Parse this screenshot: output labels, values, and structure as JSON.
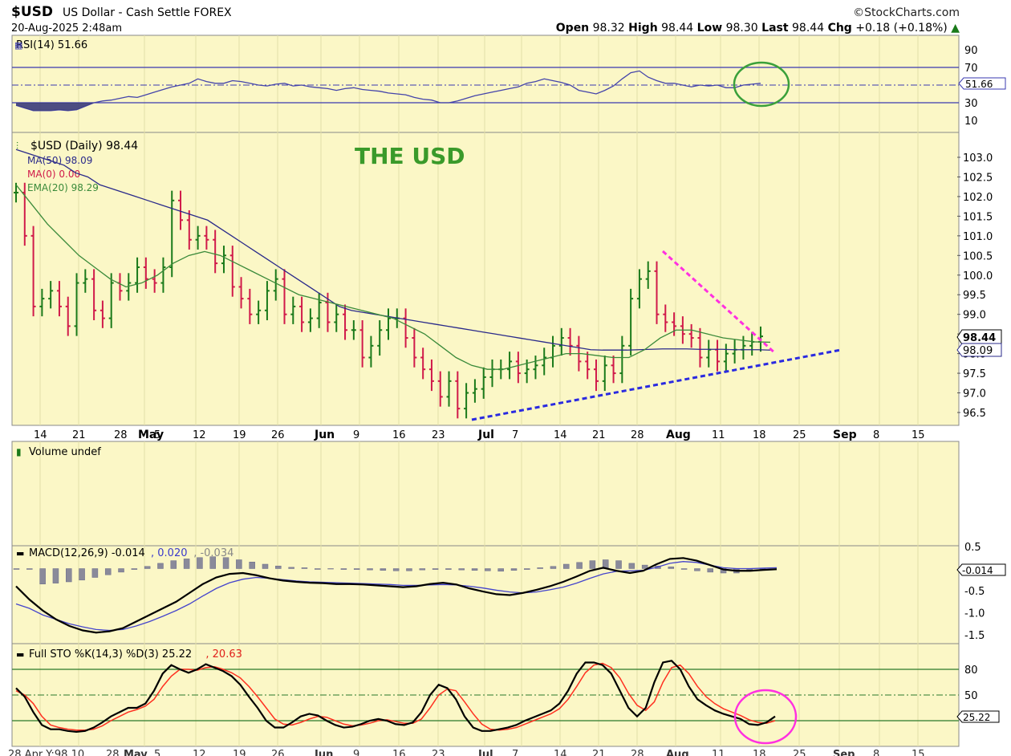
{
  "header": {
    "symbol": "$USD",
    "description": "US Dollar - Cash Settle FOREX",
    "datetime": "20-Aug-2025 2:48am",
    "source": "©StockCharts.com",
    "open_label": "Open",
    "open": "98.32",
    "high_label": "High",
    "high": "98.44",
    "low_label": "Low",
    "low": "98.30",
    "last_label": "Last",
    "last": "98.44",
    "chg_label": "Chg",
    "chg": "+0.18 (+0.18%)"
  },
  "annotation_title": "THE USD",
  "colors": {
    "panel_bg": "#fbf7c6",
    "up": "#1a7a1a",
    "down": "#d01a4a",
    "ma50": "#2a2a8a",
    "ema20": "#3a8a3a",
    "trend_blue": "#2a2ae0",
    "trend_pink": "#ff30e0",
    "circle_green": "#3aa03a",
    "circle_pink": "#ff30e0"
  },
  "chart_data": [
    {
      "type": "line",
      "panel": "rsi",
      "legend": "RSI(14) 51.66",
      "last_value": "51.66",
      "y_ticks": [
        "90",
        "70",
        "50",
        "30",
        "10"
      ],
      "series": [
        {
          "name": "RSI(14)",
          "values": [
            27,
            24,
            21,
            21,
            21,
            22,
            21,
            22,
            26,
            30,
            32,
            33,
            35,
            37,
            36,
            39,
            42,
            45,
            48,
            50,
            52,
            57,
            54,
            52,
            52,
            55,
            54,
            52,
            50,
            49,
            51,
            52,
            49,
            50,
            48,
            47,
            46,
            44,
            46,
            47,
            45,
            44,
            43,
            41,
            40,
            39,
            36,
            34,
            33,
            30,
            30,
            32,
            35,
            38,
            40,
            42,
            44,
            46,
            48,
            52,
            54,
            57,
            55,
            53,
            50,
            44,
            42,
            40,
            44,
            49,
            57,
            64,
            66,
            59,
            55,
            52,
            52,
            50,
            48,
            50,
            49,
            50,
            47,
            47,
            50,
            51,
            52
          ]
        }
      ]
    },
    {
      "type": "bar",
      "panel": "price",
      "legend": [
        "$USD (Daily) 98.44",
        "MA(50) 98.09",
        "MA(0) 0.00",
        "EMA(20) 98.29"
      ],
      "last_value": "98.44",
      "ma50_last": "98.09",
      "y_ticks": [
        "103.0",
        "102.5",
        "102.0",
        "101.5",
        "101.0",
        "100.5",
        "100.0",
        "99.5",
        "99.0",
        "98.5",
        "98.0",
        "97.5",
        "97.0",
        "96.5"
      ],
      "ylim": [
        96.2,
        103.6
      ],
      "x_tick_labels": [
        "14",
        "21",
        "28",
        "May",
        "5",
        "12",
        "19",
        "26",
        "Jun",
        "9",
        "16",
        "23",
        "Jul",
        "7",
        "14",
        "21",
        "28",
        "Aug",
        "11",
        "18",
        "25",
        "Sep",
        "8",
        "15"
      ],
      "close": [
        102.1,
        101.0,
        99.2,
        99.4,
        99.6,
        99.2,
        98.7,
        99.8,
        99.9,
        99.1,
        98.9,
        99.8,
        99.6,
        99.8,
        100.2,
        99.9,
        99.8,
        100.2,
        101.9,
        101.4,
        100.9,
        101.0,
        100.9,
        100.3,
        100.5,
        99.7,
        99.4,
        99.0,
        99.1,
        99.6,
        99.9,
        99.0,
        99.2,
        98.8,
        98.9,
        99.3,
        98.8,
        99.0,
        98.6,
        98.6,
        97.9,
        98.2,
        98.6,
        98.9,
        98.9,
        98.4,
        97.9,
        97.6,
        97.3,
        96.9,
        97.3,
        96.6,
        97.0,
        97.1,
        97.4,
        97.6,
        97.6,
        97.8,
        97.5,
        97.6,
        97.7,
        97.9,
        98.2,
        98.4,
        98.2,
        97.8,
        97.6,
        97.3,
        97.7,
        97.5,
        98.2,
        99.4,
        99.9,
        100.1,
        99.0,
        98.8,
        98.7,
        98.5,
        98.4,
        97.9,
        98.1,
        97.8,
        98.0,
        98.1,
        98.2,
        98.3,
        98.44
      ],
      "ma50": [
        103.2,
        103.1,
        103.0,
        102.9,
        102.8,
        102.6,
        102.5,
        102.3,
        102.2,
        102.1,
        102.0,
        101.9,
        101.8,
        101.7,
        101.6,
        101.5,
        101.4,
        101.2,
        101.0,
        100.8,
        100.6,
        100.4,
        100.2,
        100.0,
        99.8,
        99.6,
        99.4,
        99.2,
        99.1,
        99.05,
        99.0,
        98.95,
        98.9,
        98.85,
        98.8,
        98.75,
        98.7,
        98.65,
        98.6,
        98.55,
        98.5,
        98.45,
        98.4,
        98.35,
        98.3,
        98.25,
        98.2,
        98.15,
        98.1,
        98.09,
        98.09,
        98.09,
        98.1,
        98.11,
        98.12,
        98.12,
        98.12,
        98.11,
        98.11,
        98.11,
        98.1,
        98.1,
        98.1,
        98.09
      ],
      "ema20": [
        102.3,
        101.8,
        101.3,
        100.9,
        100.5,
        100.2,
        99.9,
        99.7,
        99.8,
        100.0,
        100.3,
        100.5,
        100.6,
        100.5,
        100.3,
        100.1,
        99.9,
        99.7,
        99.5,
        99.4,
        99.3,
        99.2,
        99.1,
        99.0,
        98.9,
        98.7,
        98.5,
        98.2,
        97.9,
        97.7,
        97.6,
        97.6,
        97.7,
        97.8,
        97.9,
        98.0,
        98.0,
        97.95,
        97.9,
        97.9,
        98.1,
        98.4,
        98.6,
        98.6,
        98.5,
        98.4,
        98.35,
        98.3,
        98.29
      ]
    },
    {
      "type": "bar",
      "panel": "volume",
      "legend": "Volume undef",
      "values": []
    },
    {
      "type": "line",
      "panel": "macd",
      "legend": [
        "MACD(12,26,9) -0.014",
        "0.020",
        "-0.034"
      ],
      "last_value": "-0.014",
      "y_ticks": [
        "0.5",
        "-0.5",
        "-1.0",
        "-1.5"
      ],
      "ylim": [
        -1.65,
        0.6
      ],
      "series": [
        {
          "name": "MACD",
          "values": [
            -0.4,
            -0.7,
            -0.95,
            -1.15,
            -1.3,
            -1.4,
            -1.45,
            -1.42,
            -1.35,
            -1.2,
            -1.05,
            -0.9,
            -0.75,
            -0.55,
            -0.35,
            -0.2,
            -0.12,
            -0.1,
            -0.15,
            -0.22,
            -0.27,
            -0.3,
            -0.32,
            -0.33,
            -0.35,
            -0.35,
            -0.36,
            -0.38,
            -0.4,
            -0.42,
            -0.4,
            -0.35,
            -0.32,
            -0.36,
            -0.45,
            -0.52,
            -0.58,
            -0.6,
            -0.55,
            -0.48,
            -0.4,
            -0.3,
            -0.18,
            -0.05,
            0.02,
            -0.05,
            -0.1,
            -0.05,
            0.1,
            0.22,
            0.24,
            0.18,
            0.08,
            -0.02,
            -0.05,
            -0.05,
            -0.03,
            -0.014
          ]
        },
        {
          "name": "Signal",
          "values": [
            -0.8,
            -0.9,
            -1.05,
            -1.15,
            -1.25,
            -1.32,
            -1.38,
            -1.4,
            -1.38,
            -1.3,
            -1.2,
            -1.08,
            -0.95,
            -0.8,
            -0.62,
            -0.45,
            -0.32,
            -0.24,
            -0.2,
            -0.22,
            -0.25,
            -0.28,
            -0.3,
            -0.31,
            -0.32,
            -0.33,
            -0.34,
            -0.35,
            -0.36,
            -0.38,
            -0.38,
            -0.37,
            -0.36,
            -0.37,
            -0.4,
            -0.44,
            -0.49,
            -0.53,
            -0.55,
            -0.53,
            -0.48,
            -0.42,
            -0.33,
            -0.22,
            -0.12,
            -0.06,
            -0.05,
            -0.04,
            0.03,
            0.12,
            0.16,
            0.14,
            0.08,
            0.02,
            0.0,
            0.0,
            0.01,
            0.02
          ]
        },
        {
          "name": "Histogram",
          "values": [
            0,
            0,
            -0.35,
            -0.33,
            -0.3,
            -0.26,
            -0.2,
            -0.14,
            -0.08,
            -0.02,
            0.05,
            0.12,
            0.18,
            0.22,
            0.25,
            0.27,
            0.25,
            0.2,
            0.15,
            0.1,
            0.06,
            0.03,
            0.02,
            0.0,
            -0.01,
            -0.02,
            -0.02,
            -0.03,
            -0.04,
            -0.05,
            -0.05,
            -0.03,
            -0.02,
            -0.02,
            -0.03,
            -0.04,
            -0.05,
            -0.06,
            -0.04,
            -0.02,
            0.02,
            0.05,
            0.1,
            0.14,
            0.18,
            0.2,
            0.18,
            0.12,
            0.08,
            0.06,
            0.04,
            0.0,
            -0.05,
            -0.08,
            -0.1,
            -0.1,
            -0.06,
            -0.034
          ]
        }
      ]
    },
    {
      "type": "line",
      "panel": "stochastic",
      "legend": [
        "Full STO %K(14,3) %D(3) 25.22",
        "20.63"
      ],
      "last_value": "25.22",
      "y_ticks": [
        "80",
        "50"
      ],
      "ylim": [
        0,
        100
      ],
      "series": [
        {
          "name": "%K",
          "values": [
            58,
            48,
            30,
            15,
            10,
            10,
            8,
            7,
            8,
            12,
            18,
            25,
            30,
            35,
            35,
            40,
            55,
            75,
            85,
            80,
            76,
            80,
            86,
            82,
            78,
            72,
            62,
            48,
            35,
            20,
            12,
            12,
            18,
            25,
            28,
            26,
            20,
            15,
            12,
            13,
            16,
            20,
            22,
            20,
            16,
            15,
            18,
            30,
            50,
            62,
            58,
            45,
            25,
            12,
            8,
            8,
            10,
            12,
            15,
            20,
            24,
            28,
            32,
            40,
            55,
            75,
            88,
            88,
            85,
            75,
            55,
            35,
            25,
            35,
            65,
            88,
            90,
            80,
            60,
            45,
            38,
            32,
            28,
            25,
            22,
            16,
            15,
            18,
            25
          ]
        },
        {
          "name": "%D",
          "values": [
            55,
            50,
            40,
            25,
            15,
            12,
            10,
            9,
            9,
            10,
            14,
            20,
            25,
            30,
            33,
            37,
            45,
            60,
            72,
            80,
            80,
            79,
            82,
            83,
            80,
            76,
            70,
            60,
            48,
            35,
            22,
            16,
            15,
            18,
            22,
            25,
            24,
            20,
            16,
            14,
            15,
            17,
            20,
            21,
            19,
            17,
            17,
            22,
            35,
            50,
            57,
            55,
            42,
            28,
            16,
            10,
            9,
            10,
            12,
            16,
            20,
            24,
            28,
            34,
            45,
            60,
            76,
            85,
            87,
            82,
            70,
            52,
            38,
            32,
            42,
            65,
            82,
            85,
            75,
            60,
            48,
            40,
            34,
            30,
            26,
            21,
            18,
            17,
            20
          ]
        }
      ]
    }
  ],
  "x_axis": {
    "ticks": [
      "14",
      "21",
      "28",
      "May",
      "5",
      "12",
      "19",
      "26",
      "Jun",
      "9",
      "16",
      "23",
      "Jul",
      "7",
      "14",
      "21",
      "28",
      "Aug",
      "11",
      "18",
      "25",
      "Sep",
      "8",
      "15"
    ],
    "bottom_labels": [
      "28 Apr Y:98.10",
      "28",
      "May",
      "5",
      "12",
      "19",
      "26",
      "Jun",
      "9",
      "16",
      "23",
      "Jul",
      "7",
      "14",
      "21",
      "28",
      "Aug",
      "11",
      "18",
      "25",
      "Sep",
      "8",
      "15"
    ]
  }
}
